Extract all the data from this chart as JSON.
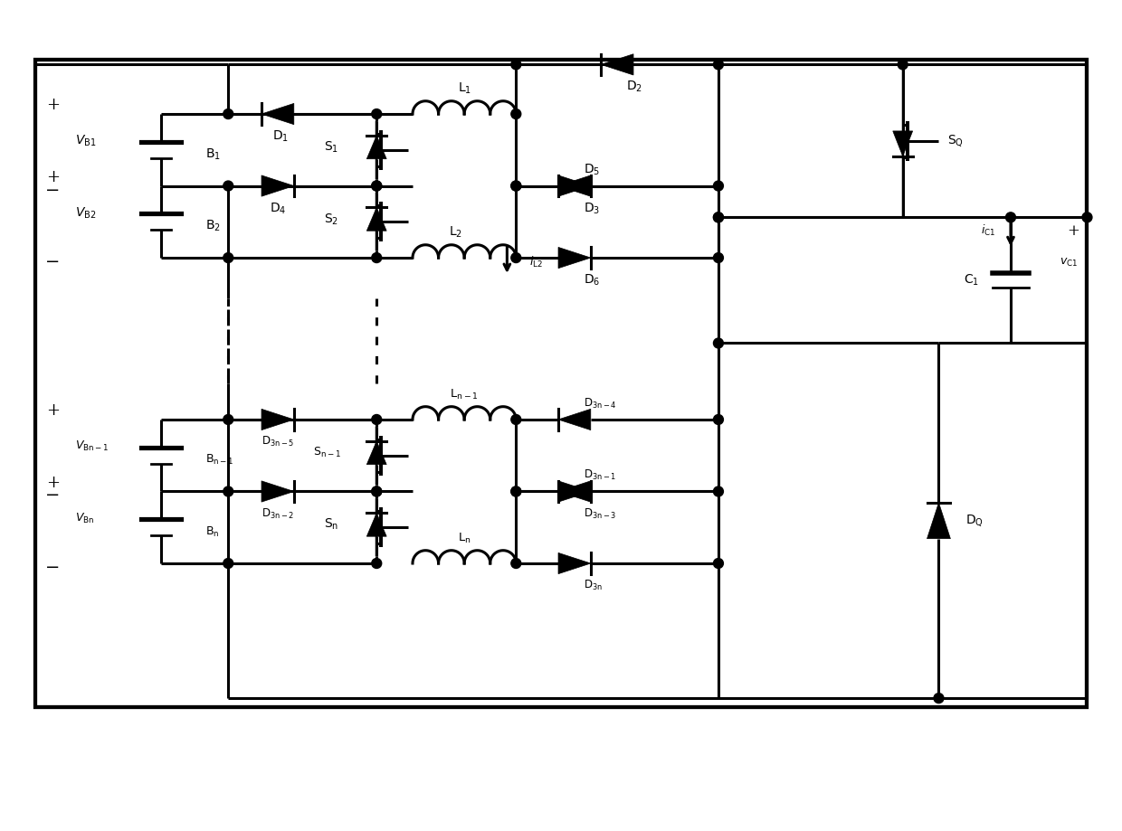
{
  "background_color": "#ffffff",
  "line_color": "#000000",
  "lw": 2.2,
  "fig_width": 12.4,
  "fig_height": 9.19,
  "xlim": [
    0,
    124
  ],
  "ylim": [
    0,
    91.9
  ]
}
